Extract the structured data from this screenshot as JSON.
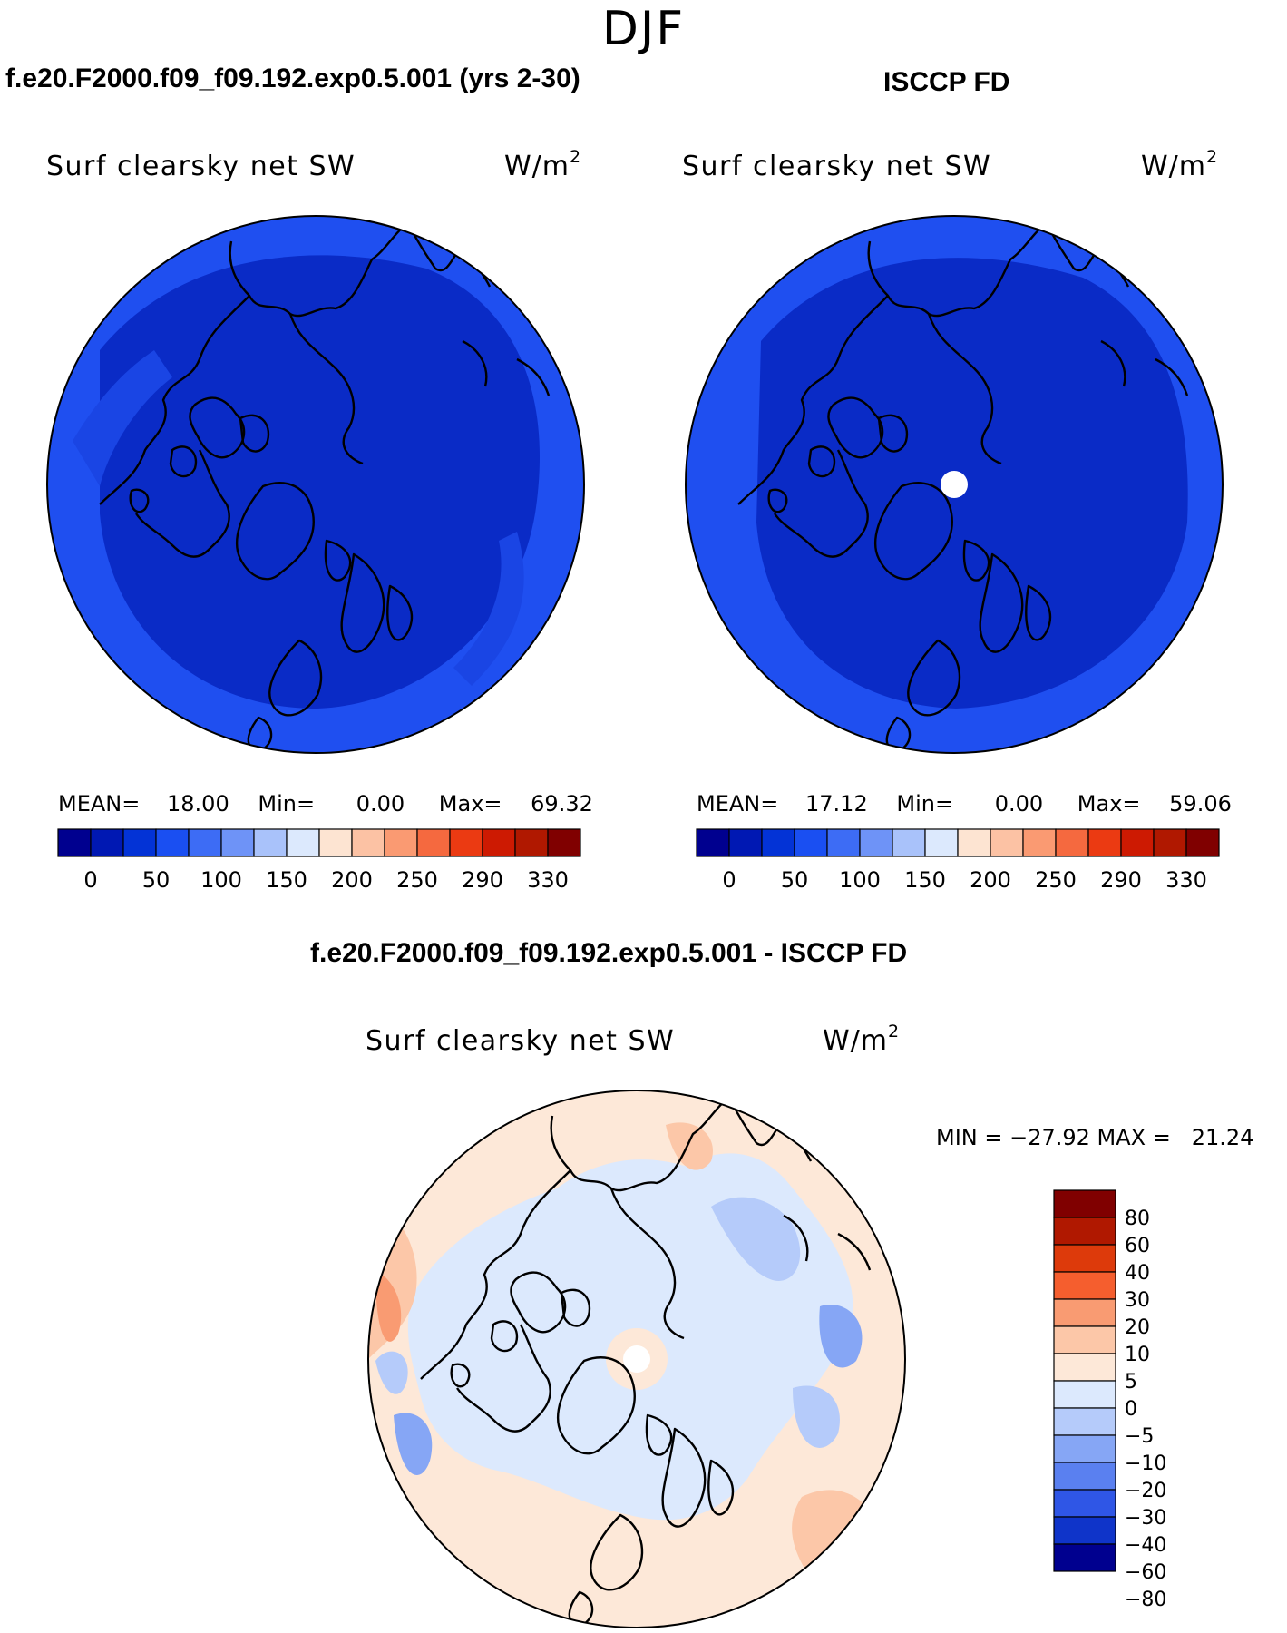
{
  "figure": {
    "season": "DJF"
  },
  "panel_left": {
    "title": "f.e20.F2000.f09_f09.192.exp0.5.001 (yrs 2-30)",
    "variable": "Surf clearsky net SW",
    "units": "W/m",
    "units_exp": "2",
    "mean_label": "MEAN=",
    "mean": "18.00",
    "min_label": "Min=",
    "min": "0.00",
    "max_label": "Max=",
    "max": "69.32"
  },
  "panel_right": {
    "title": "ISCCP FD",
    "variable": "Surf clearsky net SW",
    "units": "W/m",
    "units_exp": "2",
    "mean_label": "MEAN=",
    "mean": "17.12",
    "min_label": "Min=",
    "min": "0.00",
    "max_label": "Max=",
    "max": "59.06"
  },
  "panel_diff": {
    "title": "f.e20.F2000.f09_f09.192.exp0.5.001 - ISCCP FD",
    "variable": "Surf clearsky net SW",
    "units": "W/m",
    "units_exp": "2",
    "minmax": "MIN = −27.92 MAX =   21.24"
  },
  "colorbar_abs": {
    "colors": [
      "#00008f",
      "#0018b3",
      "#0333d6",
      "#1a4ff2",
      "#3d6cf5",
      "#6e93f7",
      "#a9c2fa",
      "#dce9fd",
      "#fde4d2",
      "#fcc2a4",
      "#fa9a72",
      "#f5693f",
      "#eb3a12",
      "#cd1a02",
      "#b01800",
      "#800000"
    ],
    "ticks": [
      "0",
      "50",
      "100",
      "150",
      "200",
      "250",
      "290",
      "330"
    ]
  },
  "colorbar_diff": {
    "colors": [
      "#800000",
      "#b01800",
      "#dd3a0b",
      "#f55e2e",
      "#f99b72",
      "#fcc7a8",
      "#fde8d8",
      "#dce9fd",
      "#b5cbfa",
      "#86a6f5",
      "#5a80f0",
      "#2f56e6",
      "#0f34c9",
      "#00008f"
    ],
    "ticks": [
      "80",
      "60",
      "40",
      "30",
      "20",
      "10",
      "5",
      "0",
      "−5",
      "−10",
      "−20",
      "−30",
      "−40",
      "−60",
      "−80"
    ]
  },
  "chart_data": {
    "type": "heatmap",
    "title": "DJF",
    "projection": "north polar stereographic",
    "panels": [
      {
        "name": "f.e20.F2000.f09_f09.192.exp0.5.001 (yrs 2-30)",
        "variable": "Surf clearsky net SW",
        "units": "W/m2",
        "mean": 18.0,
        "min": 0.0,
        "max": 69.32,
        "levels": [
          0,
          25,
          50,
          75,
          100,
          125,
          150,
          175,
          200,
          225,
          250,
          275,
          290,
          310,
          330
        ]
      },
      {
        "name": "ISCCP FD",
        "variable": "Surf clearsky net SW",
        "units": "W/m2",
        "mean": 17.12,
        "min": 0.0,
        "max": 59.06,
        "levels": [
          0,
          25,
          50,
          75,
          100,
          125,
          150,
          175,
          200,
          225,
          250,
          275,
          290,
          310,
          330
        ]
      },
      {
        "name": "f.e20.F2000.f09_f09.192.exp0.5.001 - ISCCP FD",
        "variable": "Surf clearsky net SW",
        "units": "W/m2",
        "min": -27.92,
        "max": 21.24,
        "levels": [
          -80,
          -60,
          -40,
          -30,
          -20,
          -10,
          -5,
          0,
          5,
          10,
          20,
          30,
          40,
          60,
          80
        ]
      }
    ]
  }
}
